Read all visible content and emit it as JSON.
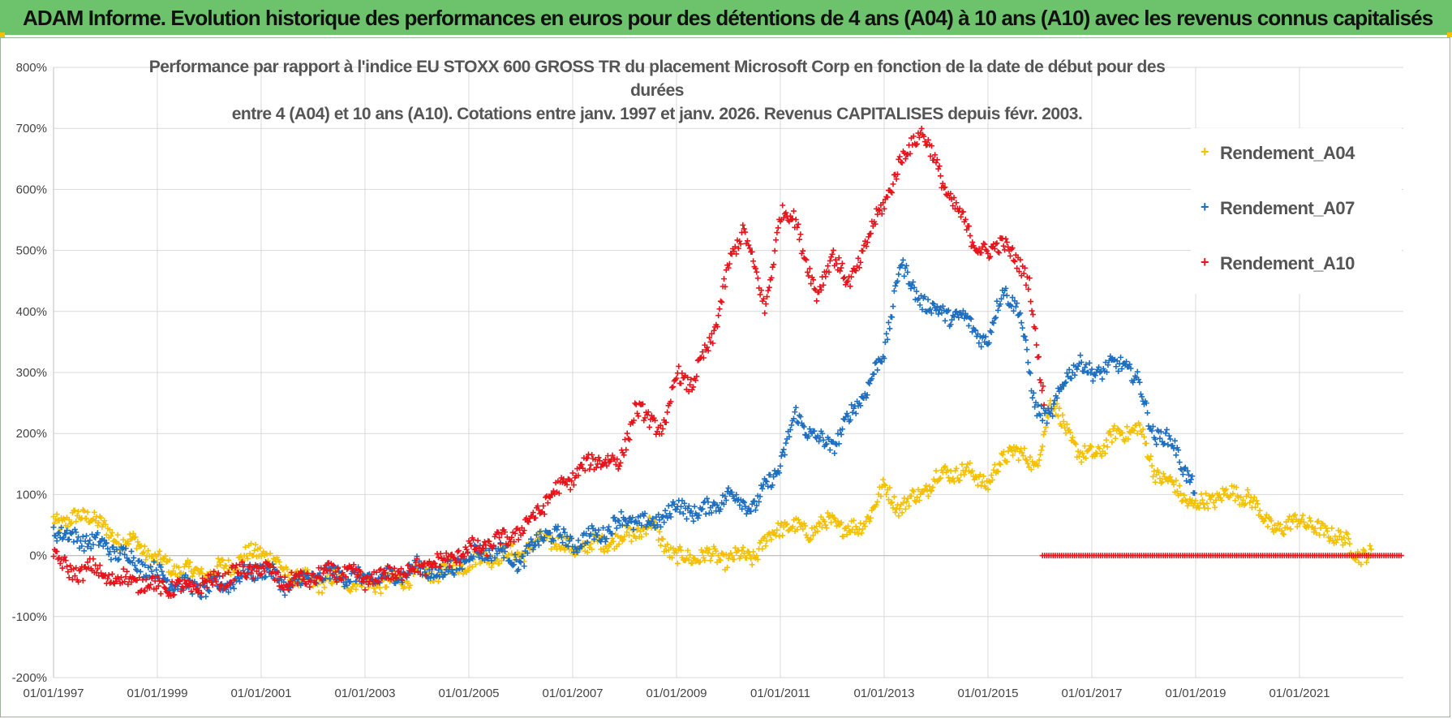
{
  "banner": {
    "title": "ADAM Informe. Evolution historique des performances en euros pour des détentions de 4 ans (A04) à 10 ans (A10) avec les revenus connus capitalisés"
  },
  "chart_data": {
    "type": "scatter",
    "title_line1": "Performance par rapport à l'indice EU STOXX 600 GROSS TR  du placement Microsoft Corp en fonction de la date de début pour des durées",
    "title_line2": "entre 4 (A04) et 10 ans (A10).  Cotations entre janv. 1997 et janv. 2026. Revenus CAPITALISES depuis févr. 2003.",
    "xlabel": "",
    "ylabel": "",
    "xlim": [
      1997.0,
      2023.0
    ],
    "ylim": [
      -200,
      800
    ],
    "yticks": [
      -200,
      -100,
      0,
      100,
      200,
      300,
      400,
      500,
      600,
      700,
      800
    ],
    "ytick_labels": [
      "-200%",
      "-100%",
      "0%",
      "100%",
      "200%",
      "300%",
      "400%",
      "500%",
      "600%",
      "700%",
      "800%"
    ],
    "xticks": [
      1997,
      1999,
      2001,
      2003,
      2005,
      2007,
      2009,
      2011,
      2013,
      2015,
      2017,
      2019,
      2021
    ],
    "xtick_labels": [
      "01/01/1997",
      "01/01/1999",
      "01/01/2001",
      "01/01/2003",
      "01/01/2005",
      "01/01/2007",
      "01/01/2009",
      "01/01/2011",
      "01/01/2013",
      "01/01/2015",
      "01/01/2017",
      "01/01/2019",
      "01/01/2021"
    ],
    "grid": true,
    "legend_position": "top-right",
    "marker": "+",
    "series": [
      {
        "name": "Rendement_A04",
        "color": "#f5c000",
        "x": [
          1997.0,
          1997.3,
          1997.7,
          1998.0,
          1998.3,
          1998.6,
          1999.0,
          1999.5,
          2000.0,
          2000.5,
          2001.0,
          2001.5,
          2002.0,
          2002.5,
          2003.0,
          2003.5,
          2004.0,
          2004.5,
          2005.0,
          2005.5,
          2006.0,
          2006.5,
          2007.0,
          2007.5,
          2008.0,
          2008.5,
          2009.0,
          2009.5,
          2010.0,
          2010.5,
          2011.0,
          2011.5,
          2012.0,
          2012.5,
          2013.0,
          2013.3,
          2013.7,
          2014.0,
          2014.5,
          2015.0,
          2015.5,
          2015.9,
          2016.2,
          2016.5,
          2016.8,
          2017.1,
          2017.5,
          2017.9,
          2018.2,
          2018.6,
          2019.0,
          2019.5,
          2020.0,
          2020.3,
          2020.7,
          2021.0,
          2021.3,
          2021.6,
          2021.9,
          2022.1,
          2022.4
        ],
        "y": [
          60,
          55,
          70,
          40,
          25,
          20,
          -10,
          -25,
          -30,
          -10,
          10,
          -30,
          -45,
          -40,
          -45,
          -45,
          -30,
          -25,
          -10,
          0,
          5,
          30,
          10,
          20,
          30,
          50,
          -5,
          0,
          -5,
          0,
          50,
          40,
          55,
          40,
          110,
          80,
          100,
          130,
          140,
          120,
          180,
          140,
          250,
          210,
          160,
          170,
          200,
          210,
          140,
          110,
          80,
          100,
          100,
          60,
          40,
          65,
          40,
          40,
          20,
          5,
          0
        ]
      },
      {
        "name": "Rendement_A07",
        "color": "#1f6fc0",
        "x": [
          1997.0,
          1997.3,
          1997.7,
          1998.0,
          1998.5,
          1999.0,
          1999.5,
          2000.0,
          2000.5,
          2001.0,
          2001.5,
          2002.0,
          2002.5,
          2003.0,
          2003.5,
          2004.0,
          2004.5,
          2005.0,
          2005.5,
          2006.0,
          2006.5,
          2007.0,
          2007.5,
          2008.0,
          2008.5,
          2009.0,
          2009.5,
          2010.0,
          2010.5,
          2011.0,
          2011.3,
          2011.7,
          2012.0,
          2012.5,
          2013.0,
          2013.3,
          2013.6,
          2014.0,
          2014.5,
          2015.0,
          2015.3,
          2015.6,
          2015.9,
          2016.2,
          2016.5,
          2016.8,
          2017.2,
          2017.6,
          2017.9,
          2018.2,
          2018.6,
          2019.0
        ],
        "y": [
          45,
          30,
          25,
          15,
          -5,
          -30,
          -50,
          -55,
          -40,
          -20,
          -50,
          -35,
          -30,
          -40,
          -35,
          -20,
          -30,
          0,
          10,
          -10,
          40,
          20,
          35,
          60,
          50,
          80,
          70,
          100,
          80,
          150,
          230,
          190,
          180,
          250,
          330,
          480,
          430,
          400,
          390,
          350,
          440,
          400,
          250,
          220,
          300,
          310,
          300,
          320,
          280,
          200,
          180,
          100
        ]
      },
      {
        "name": "Rendement_A10",
        "color": "#e8141c",
        "x": [
          1997.0,
          1997.3,
          1997.7,
          1998.0,
          1998.5,
          1999.0,
          1999.5,
          2000.0,
          2000.5,
          2001.0,
          2001.5,
          2002.0,
          2002.5,
          2003.0,
          2003.5,
          2004.0,
          2004.5,
          2005.0,
          2005.5,
          2006.0,
          2006.5,
          2007.0,
          2007.5,
          2007.9,
          2008.2,
          2008.5,
          2008.8,
          2009.0,
          2009.3,
          2009.7,
          2010.0,
          2010.3,
          2010.7,
          2011.0,
          2011.3,
          2011.7,
          2012.0,
          2012.3,
          2012.7,
          2013.0,
          2013.3,
          2013.7,
          2014.0,
          2014.3,
          2014.7,
          2015.0,
          2015.3,
          2015.6,
          2015.8,
          2016.0,
          2016.1
        ],
        "y": [
          5,
          -30,
          -20,
          -35,
          -40,
          -50,
          -55,
          -45,
          -30,
          -20,
          -45,
          -35,
          -25,
          -40,
          -30,
          -20,
          -10,
          10,
          20,
          40,
          90,
          130,
          160,
          150,
          240,
          220,
          210,
          300,
          280,
          360,
          470,
          540,
          400,
          560,
          550,
          420,
          500,
          440,
          520,
          580,
          640,
          700,
          640,
          580,
          520,
          490,
          520,
          470,
          450,
          300,
          240
        ]
      },
      {
        "name": "Rendement_A10",
        "color": "#e8141c",
        "x": [
          2016.05,
          2016.5,
          2017.0,
          2017.5,
          2018.0,
          2018.5,
          2019.0,
          2019.5,
          2020.0,
          2020.5,
          2021.0,
          2021.5,
          2022.0,
          2022.5,
          2023.0
        ],
        "y": [
          0,
          0,
          0,
          0,
          0,
          0,
          0,
          0,
          0,
          0,
          0,
          0,
          0,
          0,
          0
        ]
      }
    ]
  }
}
